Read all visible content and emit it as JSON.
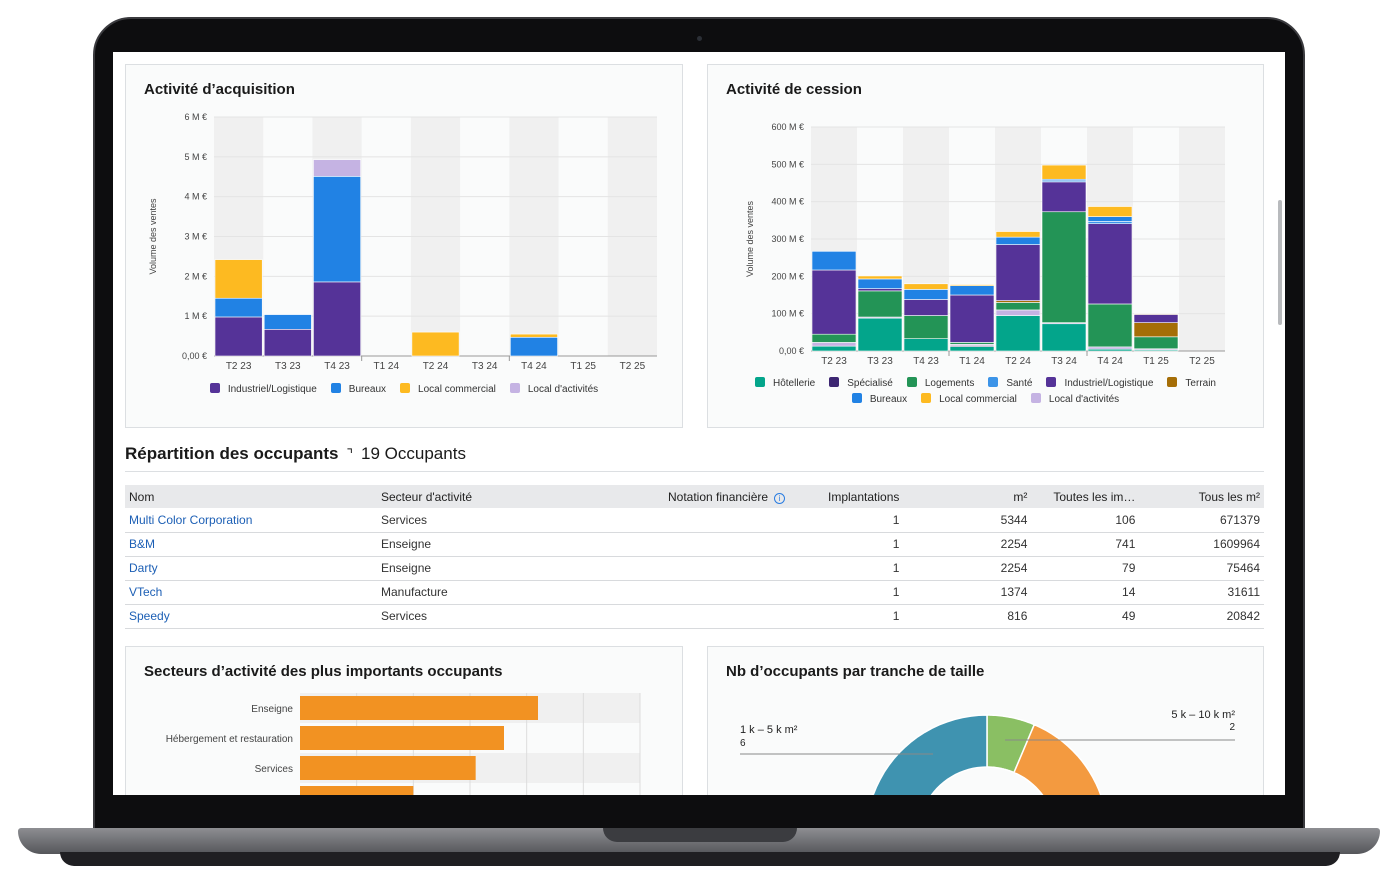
{
  "acquisition": {
    "title": "Activité d’acquisition",
    "chart_data": {
      "type": "bar",
      "stacked": true,
      "title": "Activité d’acquisition",
      "ylabel": "Volume des ventes",
      "xlabel": "",
      "unit": "M €",
      "ylim": [
        0,
        6
      ],
      "yticks": [
        "0,00 €",
        "1 M €",
        "2 M €",
        "3 M €",
        "4 M €",
        "5 M €",
        "6 M €"
      ],
      "categories": [
        "T2 23",
        "T3 23",
        "T4 23",
        "T1 24",
        "T2 24",
        "T3 24",
        "T4 24",
        "T1 25",
        "T2 25"
      ],
      "series": [
        {
          "name": "Industriel/Logistique",
          "color": "#553398",
          "values": [
            0.98,
            0.67,
            1.86,
            0,
            0,
            0,
            0,
            0,
            0
          ]
        },
        {
          "name": "Bureaux",
          "color": "#2182e4",
          "values": [
            0.47,
            0.37,
            2.65,
            0,
            0,
            0,
            0.47,
            0,
            0
          ]
        },
        {
          "name": "Local commercial",
          "color": "#fdba21",
          "values": [
            0.97,
            0,
            0,
            0,
            0.6,
            0,
            0.08,
            0,
            0
          ]
        },
        {
          "name": "Local d'activités",
          "color": "#c5b3e3",
          "values": [
            0,
            0,
            0.42,
            0,
            0,
            0,
            0,
            0,
            0
          ]
        }
      ],
      "legend": "bottom"
    }
  },
  "cession": {
    "title": "Activité de cession",
    "chart_data": {
      "type": "bar",
      "stacked": true,
      "title": "Activité de cession",
      "ylabel": "Volume des ventes",
      "xlabel": "",
      "unit": "M €",
      "ylim": [
        0,
        600
      ],
      "yticks": [
        "0,00 €",
        "100 M €",
        "200 M €",
        "300 M €",
        "400 M €",
        "500 M €",
        "600 M €"
      ],
      "categories": [
        "T2 23",
        "T3 23",
        "T4 23",
        "T1 24",
        "T2 24",
        "T3 24",
        "T4 24",
        "T1 25",
        "T2 25"
      ],
      "series": [
        {
          "name": "Hôtellerie",
          "color": "#03a58b",
          "values": [
            13,
            88,
            33,
            12,
            95,
            73,
            5,
            3,
            0
          ]
        },
        {
          "name": "Spécialisé",
          "color": "#3d2672",
          "values": [
            0,
            0,
            0,
            3,
            0,
            0,
            0,
            0,
            0
          ]
        },
        {
          "name": "Logements",
          "color": "#239456",
          "values": [
            22,
            70,
            62,
            5,
            20,
            297,
            115,
            32,
            0
          ]
        },
        {
          "name": "Santé",
          "color": "#3c94e8",
          "values": [
            0,
            0,
            0,
            0,
            0,
            3,
            6,
            0,
            0
          ]
        },
        {
          "name": "Industriel/Logistique",
          "color": "#553398",
          "values": [
            172,
            6,
            43,
            127,
            150,
            80,
            215,
            22,
            0
          ]
        },
        {
          "name": "Terrain",
          "color": "#a56e07",
          "values": [
            0,
            0,
            0,
            0,
            5,
            0,
            0,
            38,
            0
          ]
        },
        {
          "name": "Bureaux",
          "color": "#2182e4",
          "values": [
            50,
            26,
            27,
            25,
            20,
            4,
            13,
            0,
            0
          ]
        },
        {
          "name": "Local commercial",
          "color": "#fdba21",
          "values": [
            0,
            8,
            15,
            3,
            15,
            38,
            27,
            2,
            0
          ]
        },
        {
          "name": "Local d'activités",
          "color": "#c5b3e3",
          "values": [
            10,
            3,
            0,
            3,
            15,
            3,
            6,
            3,
            0
          ]
        }
      ],
      "legend": "bottom"
    }
  },
  "occupants": {
    "title": "Répartition des occupants",
    "count_label": "19 Occupants",
    "columns": [
      "Nom",
      "Secteur d'activité",
      "Notation financière",
      "Implantations",
      "m²",
      "Toutes les im…",
      "Tous les m²"
    ],
    "rows": [
      [
        "Multi Color Corporation",
        "Services",
        "",
        "1",
        "5344",
        "106",
        "671379"
      ],
      [
        "B&M",
        "Enseigne",
        "",
        "1",
        "2254",
        "741",
        "1609964"
      ],
      [
        "Darty",
        "Enseigne",
        "",
        "1",
        "2254",
        "79",
        "75464"
      ],
      [
        "VTech",
        "Manufacture",
        "",
        "1",
        "1374",
        "14",
        "31611"
      ],
      [
        "Speedy",
        "Services",
        "",
        "1",
        "816",
        "49",
        "20842"
      ]
    ]
  },
  "sectors": {
    "title": "Secteurs d’activité des plus importants occupants",
    "chart_data": {
      "type": "bar",
      "orientation": "horizontal",
      "categories": [
        "Enseigne",
        "Hébergement et restauration",
        "Services",
        ""
      ],
      "values": [
        4.2,
        3.6,
        3.1,
        2.0
      ],
      "xlim": [
        0,
        6
      ],
      "color": "#f29222"
    }
  },
  "sizes": {
    "title": "Nb d’occupants par tranche de taille",
    "chart_data": {
      "type": "pie",
      "donut": true,
      "slices": [
        {
          "label": "5 k – 10 k m²",
          "value": "2",
          "color": "#8abf63"
        },
        {
          "label": "",
          "value": "",
          "color": "#f39a40"
        },
        {
          "label": "1 k – 5 k m²",
          "value": "6",
          "color": "#3f93b0"
        }
      ]
    }
  }
}
